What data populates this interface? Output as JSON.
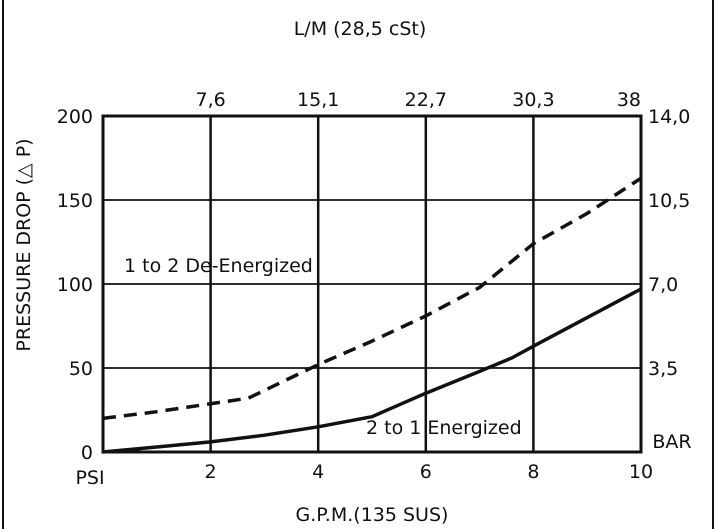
{
  "chart_data": {
    "type": "line",
    "title": "",
    "top_axis_label": "L/M (28,5 cSt)",
    "top_tick_labels": [
      "7,6",
      "15,1",
      "22,7",
      "30,3",
      "38"
    ],
    "xlabel": "G.P.M.(135 SUS)",
    "ylabel": "PRESSURE DROP (△ P)",
    "y_unit_left": "PSI",
    "y_unit_right": "BAR",
    "right_tick_labels": [
      "3,5",
      "7,0",
      "10,5",
      "14,0"
    ],
    "xlim": [
      0,
      10
    ],
    "ylim": [
      0,
      200
    ],
    "x_ticks": [
      2,
      4,
      6,
      8,
      10
    ],
    "y_ticks": [
      0,
      50,
      100,
      150,
      200
    ],
    "grid": true,
    "series": [
      {
        "name": "1 to 2 De-Energized",
        "style": "dashed",
        "x": [
          0,
          1,
          2.7,
          4,
          5,
          6,
          7,
          8,
          9,
          10
        ],
        "y": [
          20,
          24,
          32,
          52,
          66,
          81,
          98,
          124,
          142,
          163
        ]
      },
      {
        "name": "2 to 1 Energized",
        "style": "solid",
        "x": [
          0,
          1,
          2,
          3,
          4,
          5,
          6,
          7,
          7.6,
          8,
          9,
          10
        ],
        "y": [
          0,
          3,
          6,
          10,
          15,
          21,
          35,
          48,
          56,
          63,
          80,
          97
        ]
      }
    ]
  }
}
